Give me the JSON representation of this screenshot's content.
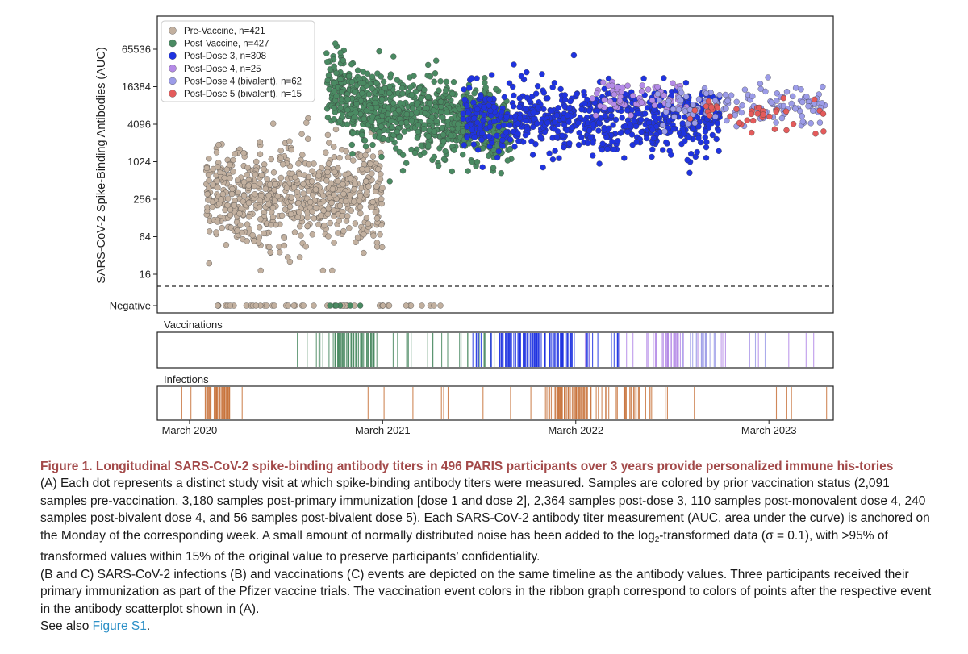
{
  "colors": {
    "pre_vaccine": "#c2b09f",
    "post_vaccine": "#4a8a62",
    "post_dose3": "#1f33e0",
    "post_dose4": "#b48ae6",
    "post_dose4_bivalent": "#9c9ce8",
    "post_dose5_bivalent": "#e45b5b",
    "infection": "#c8733c",
    "caption_title": "#a34a4a",
    "link": "#2b8fc6"
  },
  "chart_data": {
    "type": "scatter",
    "ylabel": "SARS-CoV-2 Spike-Binding Antibodies (AUC)",
    "yscale": "log2",
    "y_ticks": [
      "65536",
      "16384",
      "4096",
      "1024",
      "256",
      "64",
      "16",
      "Negative"
    ],
    "y_tick_values": [
      65536,
      16384,
      4096,
      1024,
      256,
      64,
      16,
      0
    ],
    "detection_threshold": 8,
    "x_ticks": [
      "March 2020",
      "March 2021",
      "March 2022",
      "March 2023"
    ],
    "x_range": [
      "2020-01",
      "2023-07"
    ],
    "legend_position": "top-left",
    "legend": [
      "Pre-Vaccine, n=421",
      "Post-Vaccine, n=427",
      "Post-Dose 3, n=308",
      "Post-Dose 4, n=25",
      "Post-Dose 4 (bivalent), n=62",
      "Post-Dose 5 (bivalent), n=15"
    ],
    "series": [
      {
        "name": "Pre-Vaccine",
        "samples": 2091,
        "start_month": 3,
        "end_month": 14,
        "median_log2": 8.3,
        "spread": 1.8,
        "negatives": true
      },
      {
        "name": "Post-Vaccine",
        "samples": 3180,
        "start_month": 10.5,
        "end_month": 22,
        "median_log2": 12.5,
        "spread": 1.3,
        "negatives": true
      },
      {
        "name": "Post-Dose 3",
        "samples": 2364,
        "start_month": 19,
        "end_month": 35,
        "median_log2": 12.3,
        "spread": 1.2,
        "negatives": false
      },
      {
        "name": "Post-Dose 4",
        "samples": 110,
        "start_month": 27,
        "end_month": 33,
        "median_log2": 13.4,
        "spread": 0.6,
        "negatives": false
      },
      {
        "name": "Post-Dose 4 (bivalent)",
        "samples": 240,
        "start_month": 31,
        "end_month": 41.5,
        "median_log2": 13.0,
        "spread": 0.7,
        "negatives": false
      },
      {
        "name": "Post-Dose 5 (bivalent)",
        "samples": 56,
        "start_month": 33,
        "end_month": 41.5,
        "median_log2": 12.5,
        "spread": 0.7,
        "negatives": false
      }
    ],
    "ribbons": [
      {
        "title": "Vaccinations",
        "segments": [
          {
            "color": "post_vaccine",
            "start_month": 8.5,
            "end_month": 21,
            "dense_start": 11,
            "dense_end": 13.5,
            "count": 90
          },
          {
            "color": "post_dose3",
            "start_month": 19.5,
            "end_month": 29,
            "dense_start": 21,
            "dense_end": 26,
            "count": 110
          },
          {
            "color": "post_dose4",
            "start_month": 26,
            "end_month": 41,
            "dense_start": 30.5,
            "dense_end": 32.5,
            "count": 45
          },
          {
            "color": "post_dose4_bivalent",
            "start_month": 32,
            "end_month": 41,
            "dense_start": 33,
            "dense_end": 35,
            "count": 20
          }
        ]
      },
      {
        "title": "Infections",
        "segments": [
          {
            "color": "infection",
            "start_month": 1.5,
            "end_month": 42,
            "dense_start": 3,
            "dense_end": 4.5,
            "count": 70
          },
          {
            "color": "infection",
            "start_month": 24,
            "end_month": 32,
            "dense_start": 24.5,
            "dense_end": 27,
            "count": 80
          }
        ]
      }
    ]
  },
  "caption": {
    "title": "Figure 1.  Longitudinal SARS-CoV-2 spike-binding antibody titers in 496 PARIS participants over 3 years provide personalized immune his-tories",
    "para_a_part1": "(A) Each dot represents a distinct study visit at which spike-binding antibody titers were measured. Samples are colored by prior vaccination status (2,091 samples pre-vaccination, 3,180 samples post-primary immunization [dose 1 and dose 2], 2,364 samples post-dose 3, 110 samples post-monovalent dose 4, 240 samples post-bivalent dose 4, and 56 samples post-bivalent dose 5). Each SARS-CoV-2 antibody titer measurement (AUC, area under the curve) is anchored on the Monday of the corresponding week. A small amount of normally distributed noise has been added to the log",
    "para_a_sub": "2",
    "para_a_part2": "-transformed data (σ = 0.1), with >95% of transformed values within 15% of the original value to preserve participants’ confidentiality.",
    "para_bc": "(B and C) SARS-CoV-2 infections (B) and vaccinations (C) events are depicted on the same timeline as the antibody values. Three participants received their primary immunization as part of the Pfizer vaccine trials. The vaccination event colors in the ribbon graph correspond to colors of points after the respective event in the antibody scatterplot shown in (A).",
    "see_also_prefix": "See also ",
    "see_also_link": "Figure S1",
    "see_also_suffix": "."
  }
}
